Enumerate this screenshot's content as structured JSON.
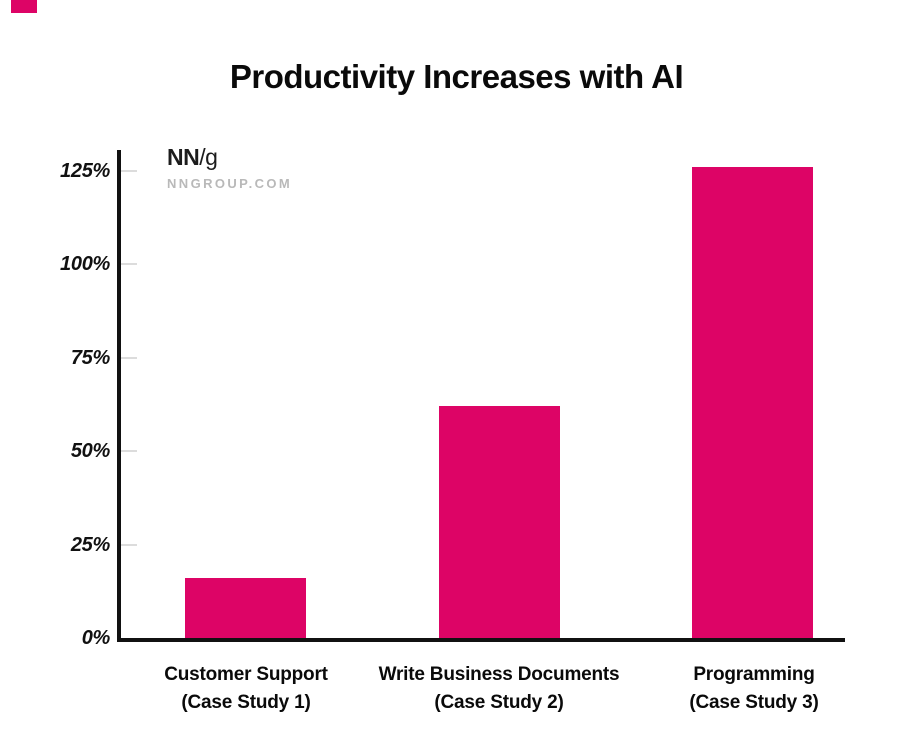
{
  "page": {
    "background": "#ffffff"
  },
  "brand": {
    "corner_mark_color": "#DD0466",
    "logo_bold": "NN",
    "logo_light": "/g",
    "site": "NNGROUP.COM",
    "site_text_color": "#b9b9b9",
    "logo_text_color": "#1c1c1c"
  },
  "chart_data": {
    "type": "bar",
    "title": "Productivity Increases with AI",
    "categories": [
      "Customer Support (Case Study 1)",
      "Write Business Documents (Case Study 2)",
      "Programming (Case Study 3)"
    ],
    "categories_lines": [
      [
        "Customer Support",
        "(Case Study 1)"
      ],
      [
        "Write Business Documents",
        "(Case Study 2)"
      ],
      [
        "Programming",
        "(Case Study 3)"
      ]
    ],
    "values": [
      16,
      62,
      126
    ],
    "unit": "%",
    "xlabel": "",
    "ylabel": "",
    "ylim": [
      0,
      125
    ],
    "ytick_step": 25,
    "yticks": [
      "0%",
      "25%",
      "50%",
      "75%",
      "100%",
      "125%"
    ],
    "grid": false,
    "legend": "none",
    "bar_color": "#DD0466",
    "axis_color": "#111111",
    "tick_color": "#dcdcdc"
  }
}
